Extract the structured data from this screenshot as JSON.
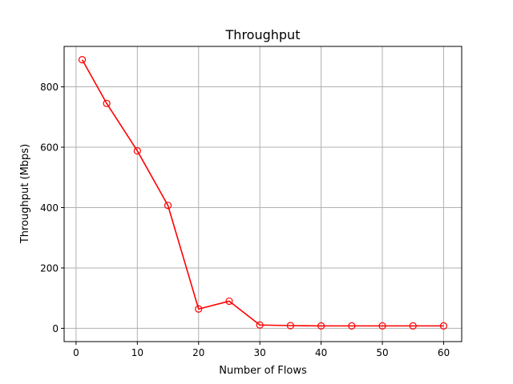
{
  "chart_data": {
    "type": "line",
    "title": "Throughput",
    "xlabel": "Number of Flows",
    "ylabel": "Throughput (Mbps)",
    "xlim": [
      -1.95,
      62.95
    ],
    "ylim": [
      -44,
      934
    ],
    "xticks": [
      0,
      10,
      20,
      30,
      40,
      50,
      60
    ],
    "yticks": [
      0,
      200,
      400,
      600,
      800
    ],
    "grid": true,
    "series": [
      {
        "color": "#ff0000",
        "marker": "open-circle",
        "x": [
          1,
          5,
          10,
          15,
          20,
          25,
          30,
          35,
          40,
          45,
          50,
          55,
          60
        ],
        "y": [
          890,
          745,
          588,
          407,
          64,
          90,
          11,
          9,
          8,
          8,
          8,
          8,
          8
        ]
      }
    ]
  }
}
